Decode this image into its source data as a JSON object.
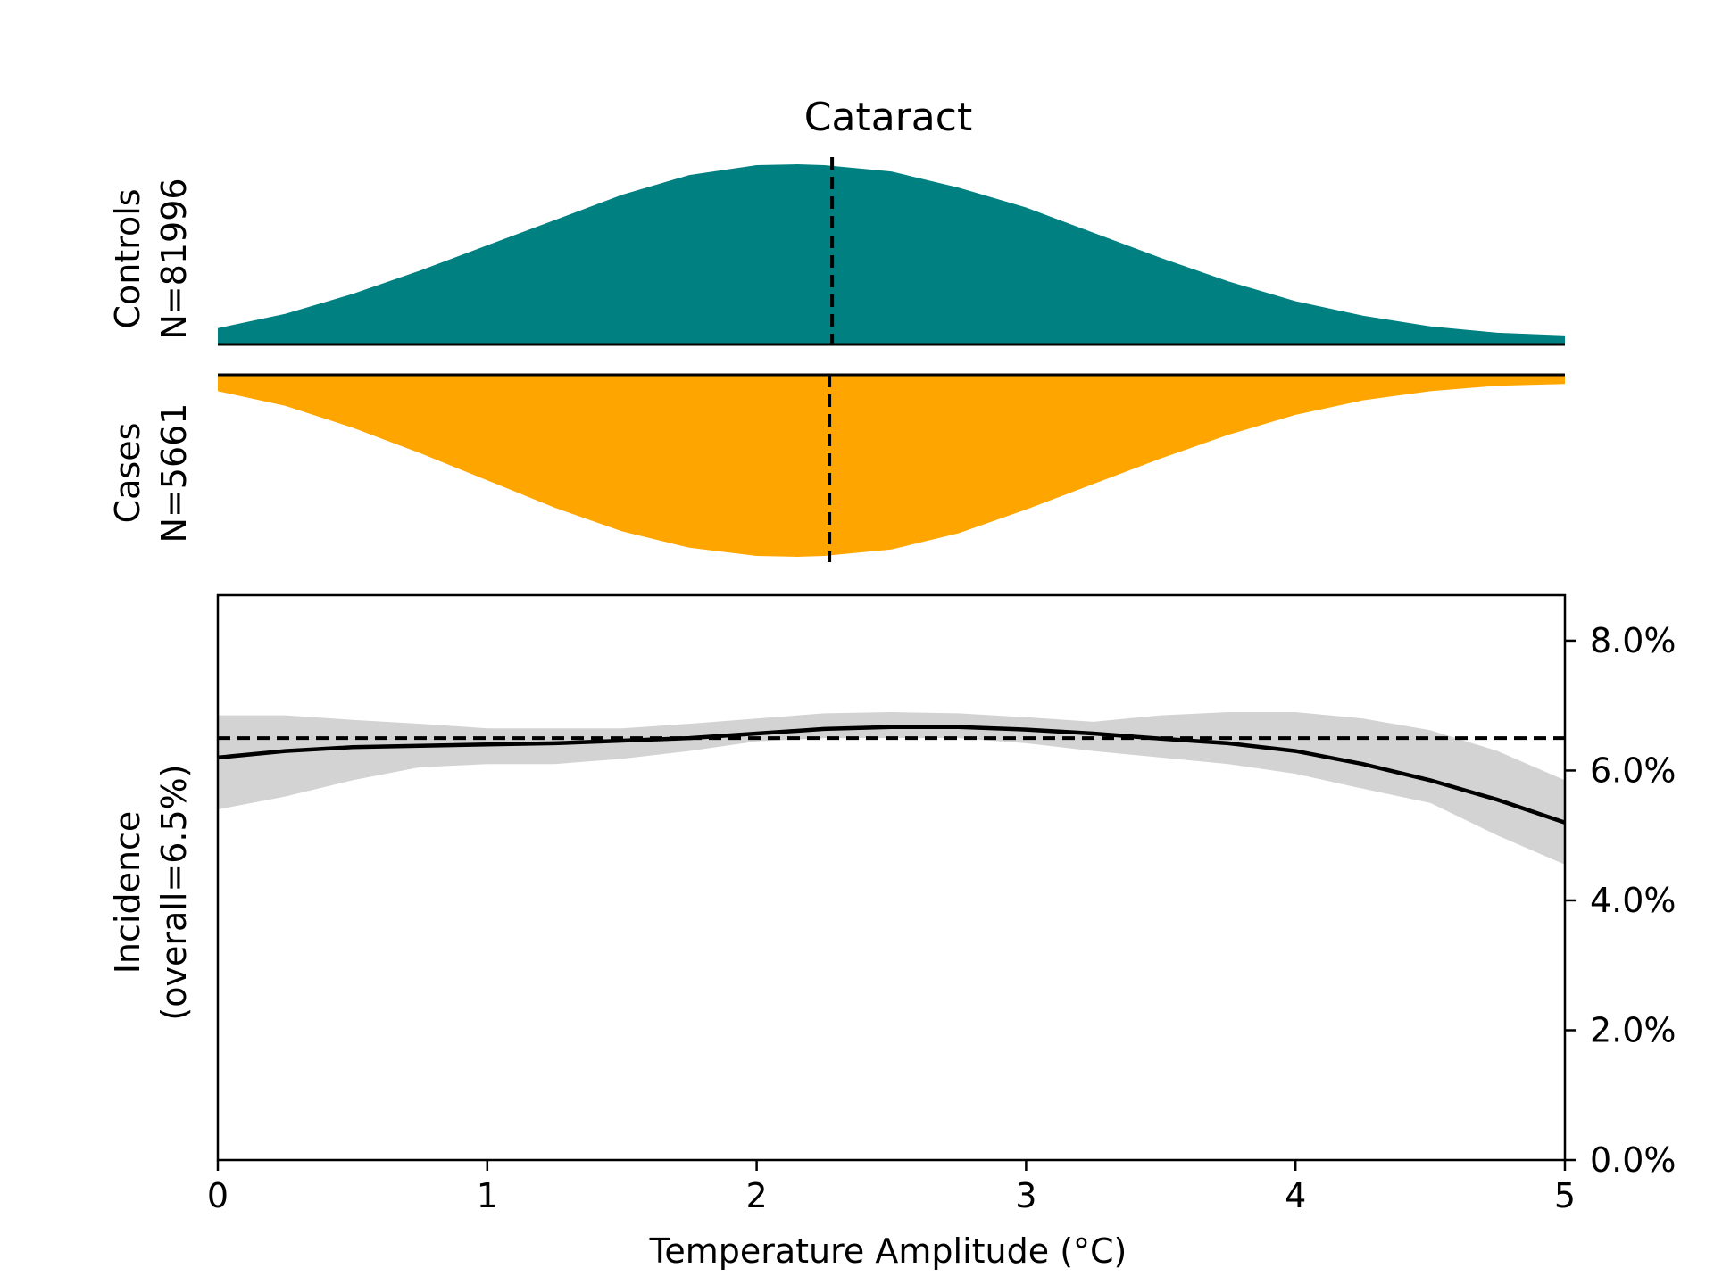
{
  "chart_data": [
    {
      "type": "area",
      "panel": "distribution",
      "title": "Cataract",
      "x_range": [
        0,
        5
      ],
      "grid": false,
      "series": [
        {
          "name": "Controls",
          "label_line1": "Controls",
          "label_line2": "N=81996",
          "color": "#008080",
          "direction": "up",
          "median": 2.28,
          "x": [
            0,
            0.25,
            0.5,
            0.75,
            1.0,
            1.25,
            1.5,
            1.75,
            2.0,
            2.15,
            2.25,
            2.5,
            2.75,
            3.0,
            3.25,
            3.5,
            3.75,
            4.0,
            4.25,
            4.5,
            4.75,
            5.0
          ],
          "density": [
            0.09,
            0.17,
            0.28,
            0.41,
            0.55,
            0.69,
            0.83,
            0.94,
            0.995,
            1.0,
            0.995,
            0.96,
            0.87,
            0.76,
            0.62,
            0.48,
            0.35,
            0.24,
            0.16,
            0.1,
            0.065,
            0.05
          ]
        },
        {
          "name": "Cases",
          "label_line1": "Cases",
          "label_line2": "N=5661",
          "color": "#FFA500",
          "direction": "down",
          "median": 2.27,
          "x": [
            0,
            0.25,
            0.5,
            0.75,
            1.0,
            1.25,
            1.5,
            1.75,
            2.0,
            2.15,
            2.25,
            2.5,
            2.75,
            3.0,
            3.25,
            3.5,
            3.75,
            4.0,
            4.25,
            4.5,
            4.75,
            5.0
          ],
          "density": [
            0.09,
            0.17,
            0.29,
            0.43,
            0.58,
            0.73,
            0.86,
            0.95,
            0.995,
            1.0,
            0.995,
            0.96,
            0.87,
            0.74,
            0.6,
            0.46,
            0.33,
            0.22,
            0.14,
            0.09,
            0.06,
            0.05
          ]
        }
      ]
    },
    {
      "type": "line",
      "panel": "incidence",
      "xlabel": "Temperature Amplitude (°C)",
      "ylabel_line1": "Incidence",
      "ylabel_line2": "(overall=6.5%)",
      "xlim": [
        0,
        5
      ],
      "ylim": [
        0,
        8.7
      ],
      "x_ticks": [
        0,
        1,
        2,
        3,
        4,
        5
      ],
      "x_tick_labels": [
        "0",
        "1",
        "2",
        "3",
        "4",
        "5"
      ],
      "y_ticks": [
        0,
        2,
        4,
        6,
        8
      ],
      "y_tick_labels": [
        "0.0%",
        "2.0%",
        "4.0%",
        "6.0%",
        "8.0%"
      ],
      "y_axis_side": "right",
      "grid": false,
      "overall_reference": 6.5,
      "series": [
        {
          "x": [
            0,
            0.25,
            0.5,
            0.75,
            1.0,
            1.25,
            1.5,
            1.75,
            2.0,
            2.25,
            2.5,
            2.75,
            3.0,
            3.25,
            3.5,
            3.75,
            4.0,
            4.25,
            4.5,
            4.75,
            5.0
          ],
          "values": [
            6.2,
            6.3,
            6.36,
            6.38,
            6.4,
            6.42,
            6.46,
            6.5,
            6.57,
            6.64,
            6.67,
            6.67,
            6.63,
            6.57,
            6.49,
            6.42,
            6.3,
            6.1,
            5.85,
            5.55,
            5.2
          ],
          "ci_lower": [
            5.4,
            5.6,
            5.85,
            6.05,
            6.1,
            6.1,
            6.18,
            6.3,
            6.45,
            6.5,
            6.5,
            6.5,
            6.42,
            6.3,
            6.2,
            6.1,
            5.95,
            5.72,
            5.5,
            5.0,
            4.55
          ],
          "ci_upper": [
            6.85,
            6.85,
            6.78,
            6.72,
            6.65,
            6.65,
            6.65,
            6.72,
            6.8,
            6.88,
            6.9,
            6.88,
            6.82,
            6.75,
            6.85,
            6.9,
            6.9,
            6.8,
            6.62,
            6.3,
            5.85
          ],
          "line_color": "#000000",
          "ci_color": "#d3d3d3"
        }
      ]
    }
  ]
}
